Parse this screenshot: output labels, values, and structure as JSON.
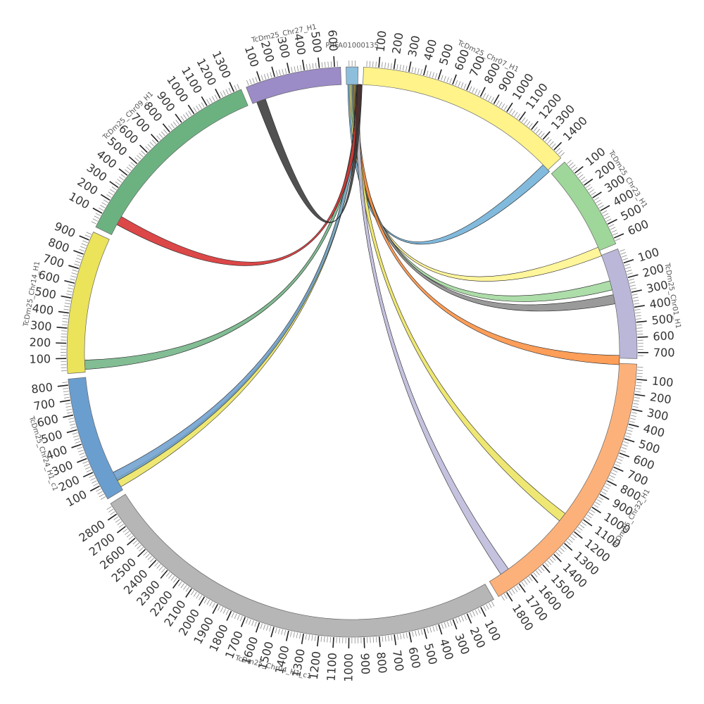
{
  "chart_data": {
    "type": "chord",
    "title": "",
    "hub": "PRFA01000135",
    "segments": [
      {
        "id": "PRFA01000135",
        "label": "PRFA01000135",
        "length": 80,
        "color": "#8dbfdd",
        "ticks": []
      },
      {
        "id": "chr07",
        "label": "TcDm25_Chr07_H1",
        "length": 1470,
        "color": "#fff38a",
        "ticks": [
          "100",
          "200",
          "300",
          "400",
          "500",
          "600",
          "700",
          "800",
          "900",
          "1000",
          "1100",
          "1200",
          "1300",
          "1400"
        ]
      },
      {
        "id": "chr23",
        "label": "TcDm25_Chr23_H1",
        "length": 640,
        "color": "#9fd79a",
        "ticks": [
          "100",
          "200",
          "300",
          "400",
          "500",
          "600"
        ]
      },
      {
        "id": "chr01",
        "label": "TcDm25_Chr01_H1",
        "length": 740,
        "color": "#bbb7d9",
        "ticks": [
          "100",
          "200",
          "300",
          "400",
          "500",
          "600",
          "700"
        ]
      },
      {
        "id": "chr32",
        "label": "TcDm25_Chr32_H1",
        "length": 1860,
        "color": "#fdb17a",
        "ticks": [
          "100",
          "200",
          "300",
          "400",
          "500",
          "600",
          "700",
          "800",
          "900",
          "1000",
          "1100",
          "1200",
          "1300",
          "1400",
          "1500",
          "1600",
          "1700",
          "1800"
        ]
      },
      {
        "id": "chr04",
        "label": "TcDm25_Chr04_H1_c1",
        "length": 2880,
        "color": "#b6b6b6",
        "ticks": [
          "100",
          "200",
          "300",
          "400",
          "500",
          "600",
          "700",
          "800",
          "900",
          "1000",
          "1100",
          "1200",
          "1300",
          "1400",
          "1500",
          "1600",
          "1700",
          "1800",
          "1900",
          "2000",
          "2100",
          "2200",
          "2300",
          "2400",
          "2500",
          "2600",
          "2700",
          "2800"
        ]
      },
      {
        "id": "chr24",
        "label": "TcDm25_Chr24_H1_c1",
        "length": 840,
        "color": "#6a9ecf",
        "ticks": [
          "100",
          "200",
          "300",
          "400",
          "500",
          "600",
          "700",
          "800"
        ]
      },
      {
        "id": "chr14",
        "label": "TcDm25_Chr14_H1",
        "length": 960,
        "color": "#ebe35a",
        "ticks": [
          "100",
          "200",
          "300",
          "400",
          "500",
          "600",
          "700",
          "800",
          "900"
        ]
      },
      {
        "id": "chr09",
        "label": "TcDm25_Chr09_H1",
        "length": 1350,
        "color": "#6cb281",
        "ticks": [
          "100",
          "200",
          "300",
          "400",
          "500",
          "600",
          "700",
          "800",
          "900",
          "1000",
          "1100",
          "1200",
          "1300"
        ]
      },
      {
        "id": "chr27",
        "label": "TcDm25_Chr27_H1",
        "length": 640,
        "color": "#9b8bc6",
        "ticks": [
          "100",
          "200",
          "300",
          "400",
          "500",
          "600"
        ]
      }
    ],
    "links": [
      {
        "from": "PRFA01000135",
        "to": "chr07",
        "from_pos": 10,
        "to_pos": 1420,
        "width": 15,
        "color": "#6baed6"
      },
      {
        "from": "PRFA01000135",
        "to": "chr23",
        "from_pos": 20,
        "to_pos": 615,
        "width": 15,
        "color": "#fff38a"
      },
      {
        "from": "PRFA01000135",
        "to": "chr01",
        "from_pos": 30,
        "to_pos": 190,
        "width": 15,
        "color": "#9fd79a"
      },
      {
        "from": "PRFA01000135",
        "to": "chr01",
        "from_pos": 40,
        "to_pos": 290,
        "width": 15,
        "color": "#888888"
      },
      {
        "from": "PRFA01000135",
        "to": "chr01",
        "from_pos": 50,
        "to_pos": 720,
        "width": 15,
        "color": "#fd8d3c"
      },
      {
        "from": "PRFA01000135",
        "to": "chr32",
        "from_pos": 55,
        "to_pos": 1140,
        "width": 8,
        "color": "#ebe35a"
      },
      {
        "from": "PRFA01000135",
        "to": "chr32",
        "from_pos": 62,
        "to_pos": 1700,
        "width": 30,
        "color": "#bbb7d9"
      },
      {
        "from": "PRFA01000135",
        "to": "chr24",
        "from_pos": 68,
        "to_pos": 25,
        "width": 8,
        "color": "#ebe35a"
      },
      {
        "from": "PRFA01000135",
        "to": "chr24",
        "from_pos": 70,
        "to_pos": 75,
        "width": 5,
        "color": "#6a9ecf"
      },
      {
        "from": "PRFA01000135",
        "to": "chr14",
        "from_pos": 72,
        "to_pos": 20,
        "width": 6,
        "color": "#6cb281"
      },
      {
        "from": "PRFA01000135",
        "to": "chr09",
        "from_pos": 75,
        "to_pos": 80,
        "width": 20,
        "color": "#d62728"
      },
      {
        "from": "PRFA01000135",
        "to": "chr27",
        "from_pos": 78,
        "to_pos": 30,
        "width": 6,
        "color": "#333333"
      }
    ]
  }
}
